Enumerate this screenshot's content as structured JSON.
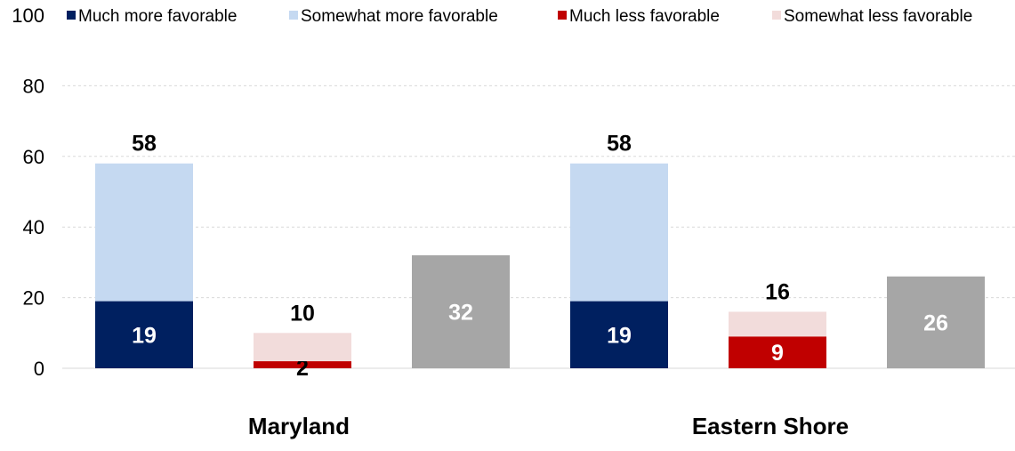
{
  "chart_data": {
    "type": "bar",
    "ylim": [
      0,
      100
    ],
    "yticks": [
      0,
      20,
      40,
      60,
      80,
      100
    ],
    "grid": true,
    "legend_position": "top",
    "legend": [
      {
        "key": "much_more",
        "label": "Much more favorable",
        "color": "#002060"
      },
      {
        "key": "somewhat_more",
        "label": "Somewhat more favorable",
        "color": "#C5D9F1"
      },
      {
        "key": "much_less",
        "label": "Much less favorable",
        "color": "#C00000"
      },
      {
        "key": "somewhat_less",
        "label": "Somewhat less favorable",
        "color": "#F2DCDB"
      }
    ],
    "neutral_color": "#A6A6A6",
    "groups": [
      {
        "name": "Maryland",
        "bars": [
          {
            "segments": [
              {
                "key": "much_more",
                "value": 19,
                "label": "19"
              },
              {
                "key": "somewhat_more",
                "value": 39
              }
            ],
            "total_label": "58"
          },
          {
            "segments": [
              {
                "key": "much_less",
                "value": 2,
                "label": "2"
              },
              {
                "key": "somewhat_less",
                "value": 8
              }
            ],
            "total_label": "10"
          },
          {
            "segments": [
              {
                "key": "neutral",
                "value": 32,
                "label": "32"
              }
            ],
            "total_label": ""
          }
        ]
      },
      {
        "name": "Eastern Shore",
        "bars": [
          {
            "segments": [
              {
                "key": "much_more",
                "value": 19,
                "label": "19"
              },
              {
                "key": "somewhat_more",
                "value": 39
              }
            ],
            "total_label": "58"
          },
          {
            "segments": [
              {
                "key": "much_less",
                "value": 9,
                "label": "9"
              },
              {
                "key": "somewhat_less",
                "value": 7
              }
            ],
            "total_label": "16"
          },
          {
            "segments": [
              {
                "key": "neutral",
                "value": 26,
                "label": "26"
              }
            ],
            "total_label": ""
          }
        ]
      }
    ]
  }
}
